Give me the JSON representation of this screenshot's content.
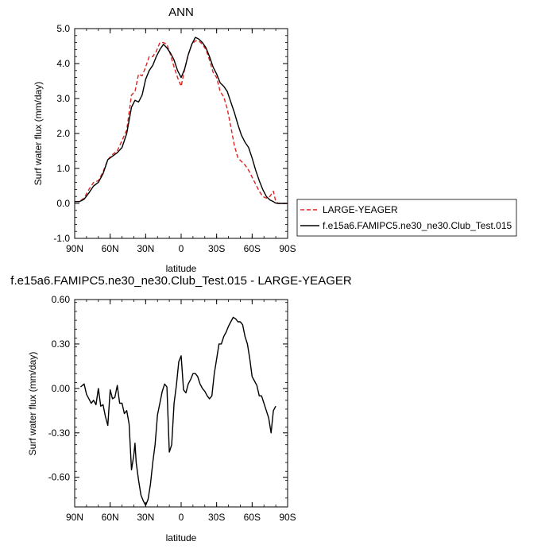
{
  "chart_data": [
    {
      "type": "line",
      "title": "ANN",
      "xlabel": "latitude",
      "ylabel": "Surf water flux (mm/day)",
      "xlim": [
        -90,
        90
      ],
      "ylim": [
        -1.0,
        5.0
      ],
      "xticks": [
        {
          "value": -90,
          "label": "90N"
        },
        {
          "value": -60,
          "label": "60N"
        },
        {
          "value": -30,
          "label": "30N"
        },
        {
          "value": 0,
          "label": "0"
        },
        {
          "value": 30,
          "label": "30S"
        },
        {
          "value": 60,
          "label": "60S"
        },
        {
          "value": 90,
          "label": "90S"
        }
      ],
      "yticks": [
        {
          "value": -1.0,
          "label": "-1.0"
        },
        {
          "value": 0.0,
          "label": "0.0"
        },
        {
          "value": 1.0,
          "label": "1.0"
        },
        {
          "value": 2.0,
          "label": "2.0"
        },
        {
          "value": 3.0,
          "label": "3.0"
        },
        {
          "value": 4.0,
          "label": "4.0"
        },
        {
          "value": 5.0,
          "label": "5.0"
        }
      ],
      "legend_position": "right",
      "series": [
        {
          "name": "LARGE-YEAGER",
          "color": "#dd2222",
          "dash": "dashed",
          "x": [
            -90,
            -86,
            -82,
            -78,
            -74,
            -70,
            -66,
            -62,
            -58,
            -54,
            -50,
            -46,
            -42,
            -39,
            -36,
            -33,
            -30,
            -27,
            -24,
            -21,
            -18,
            -15,
            -12,
            -9,
            -6,
            -3,
            0,
            3,
            6,
            9,
            12,
            15,
            18,
            21,
            24,
            27,
            30,
            33,
            36,
            39,
            42,
            45,
            48,
            51,
            54,
            57,
            60,
            63,
            66,
            69,
            72,
            75,
            78,
            80,
            82,
            86,
            90
          ],
          "y": [
            0.05,
            0.06,
            0.15,
            0.4,
            0.6,
            0.65,
            0.9,
            1.25,
            1.4,
            1.5,
            1.8,
            2.1,
            3.1,
            3.2,
            3.7,
            3.65,
            3.9,
            4.2,
            4.2,
            4.35,
            4.6,
            4.6,
            4.55,
            4.25,
            3.9,
            3.6,
            3.35,
            3.85,
            4.25,
            4.55,
            4.65,
            4.65,
            4.55,
            4.4,
            4.1,
            3.75,
            3.6,
            3.2,
            3.05,
            2.7,
            2.2,
            1.65,
            1.3,
            1.2,
            1.1,
            0.95,
            0.75,
            0.55,
            0.35,
            0.2,
            0.15,
            0.2,
            0.35,
            0.05,
            0.0,
            0.0,
            0.0
          ]
        },
        {
          "name": "f.e15a6.FAMIPC5.ne30_ne30.Club_Test.015",
          "color": "#000000",
          "dash": "solid",
          "x": [
            -90,
            -86,
            -82,
            -78,
            -74,
            -70,
            -66,
            -62,
            -58,
            -54,
            -50,
            -46,
            -42,
            -39,
            -36,
            -33,
            -30,
            -27,
            -24,
            -21,
            -18,
            -15,
            -12,
            -9,
            -6,
            -3,
            0,
            3,
            6,
            9,
            12,
            15,
            18,
            21,
            24,
            27,
            30,
            33,
            36,
            39,
            42,
            45,
            48,
            51,
            54,
            57,
            60,
            63,
            66,
            69,
            72,
            75,
            78,
            80,
            82,
            86,
            90
          ],
          "y": [
            0.05,
            0.05,
            0.12,
            0.3,
            0.5,
            0.6,
            0.85,
            1.25,
            1.35,
            1.45,
            1.6,
            2.0,
            2.75,
            2.95,
            2.9,
            3.1,
            3.55,
            3.8,
            3.95,
            4.2,
            4.4,
            4.55,
            4.45,
            4.3,
            4.1,
            3.8,
            3.6,
            3.85,
            4.25,
            4.55,
            4.75,
            4.7,
            4.6,
            4.45,
            4.2,
            3.9,
            3.7,
            3.45,
            3.35,
            3.2,
            2.9,
            2.6,
            2.25,
            1.95,
            1.75,
            1.6,
            1.3,
            0.95,
            0.65,
            0.4,
            0.2,
            0.1,
            0.05,
            0.01,
            0.0,
            0.0,
            0.0
          ]
        }
      ]
    },
    {
      "type": "line",
      "title": "f.e15a6.FAMIPC5.ne30_ne30.Club_Test.015 - LARGE-YEAGER",
      "xlabel": "latitude",
      "ylabel": "Surf water flux (mm/day)",
      "xlim": [
        -90,
        90
      ],
      "ylim": [
        -0.8,
        0.6
      ],
      "xticks": [
        {
          "value": -90,
          "label": "90N"
        },
        {
          "value": -60,
          "label": "60N"
        },
        {
          "value": -30,
          "label": "30N"
        },
        {
          "value": 0,
          "label": "0"
        },
        {
          "value": 30,
          "label": "30S"
        },
        {
          "value": 60,
          "label": "60S"
        },
        {
          "value": 90,
          "label": "90S"
        }
      ],
      "yticks": [
        {
          "value": -0.6,
          "label": "-0.60"
        },
        {
          "value": -0.3,
          "label": "-0.30"
        },
        {
          "value": 0.0,
          "label": "0.00"
        },
        {
          "value": 0.3,
          "label": "0.30"
        },
        {
          "value": 0.6,
          "label": "0.60"
        }
      ],
      "series": [
        {
          "color": "#000000",
          "dash": "solid",
          "x": [
            -85,
            -82,
            -80,
            -78,
            -76,
            -74,
            -72,
            -70,
            -68,
            -66,
            -64,
            -62,
            -60,
            -58,
            -56,
            -54,
            -52,
            -50,
            -48,
            -46,
            -44,
            -42,
            -40,
            -39,
            -38,
            -36,
            -34,
            -32,
            -30,
            -28,
            -26,
            -24,
            -22,
            -20,
            -18,
            -16,
            -14,
            -12,
            -10,
            -8,
            -6,
            -4,
            -2,
            0,
            2,
            4,
            6,
            8,
            10,
            12,
            14,
            16,
            18,
            20,
            22,
            24,
            26,
            28,
            30,
            32,
            34,
            36,
            38,
            40,
            42,
            44,
            46,
            48,
            50,
            52,
            54,
            56,
            58,
            60,
            62,
            64,
            66,
            68,
            70,
            72,
            74,
            76,
            78,
            80
          ],
          "y": [
            0.01,
            0.03,
            -0.04,
            -0.07,
            -0.1,
            -0.08,
            -0.11,
            0.0,
            -0.12,
            -0.11,
            -0.19,
            -0.25,
            -0.01,
            -0.07,
            -0.06,
            0.02,
            -0.1,
            -0.1,
            -0.17,
            -0.15,
            -0.24,
            -0.55,
            -0.45,
            -0.37,
            -0.5,
            -0.62,
            -0.72,
            -0.76,
            -0.79,
            -0.75,
            -0.65,
            -0.5,
            -0.38,
            -0.18,
            -0.1,
            -0.02,
            0.03,
            0.01,
            -0.43,
            -0.38,
            -0.1,
            0.02,
            0.18,
            0.22,
            -0.01,
            -0.03,
            0.03,
            0.06,
            0.1,
            0.1,
            0.08,
            0.03,
            0.0,
            -0.02,
            -0.05,
            -0.07,
            -0.05,
            0.1,
            0.2,
            0.3,
            0.3,
            0.35,
            0.38,
            0.42,
            0.45,
            0.48,
            0.47,
            0.45,
            0.45,
            0.43,
            0.35,
            0.3,
            0.2,
            0.08,
            0.05,
            0.02,
            -0.05,
            -0.05,
            -0.1,
            -0.15,
            -0.2,
            -0.3,
            -0.15,
            -0.12
          ]
        }
      ]
    }
  ]
}
